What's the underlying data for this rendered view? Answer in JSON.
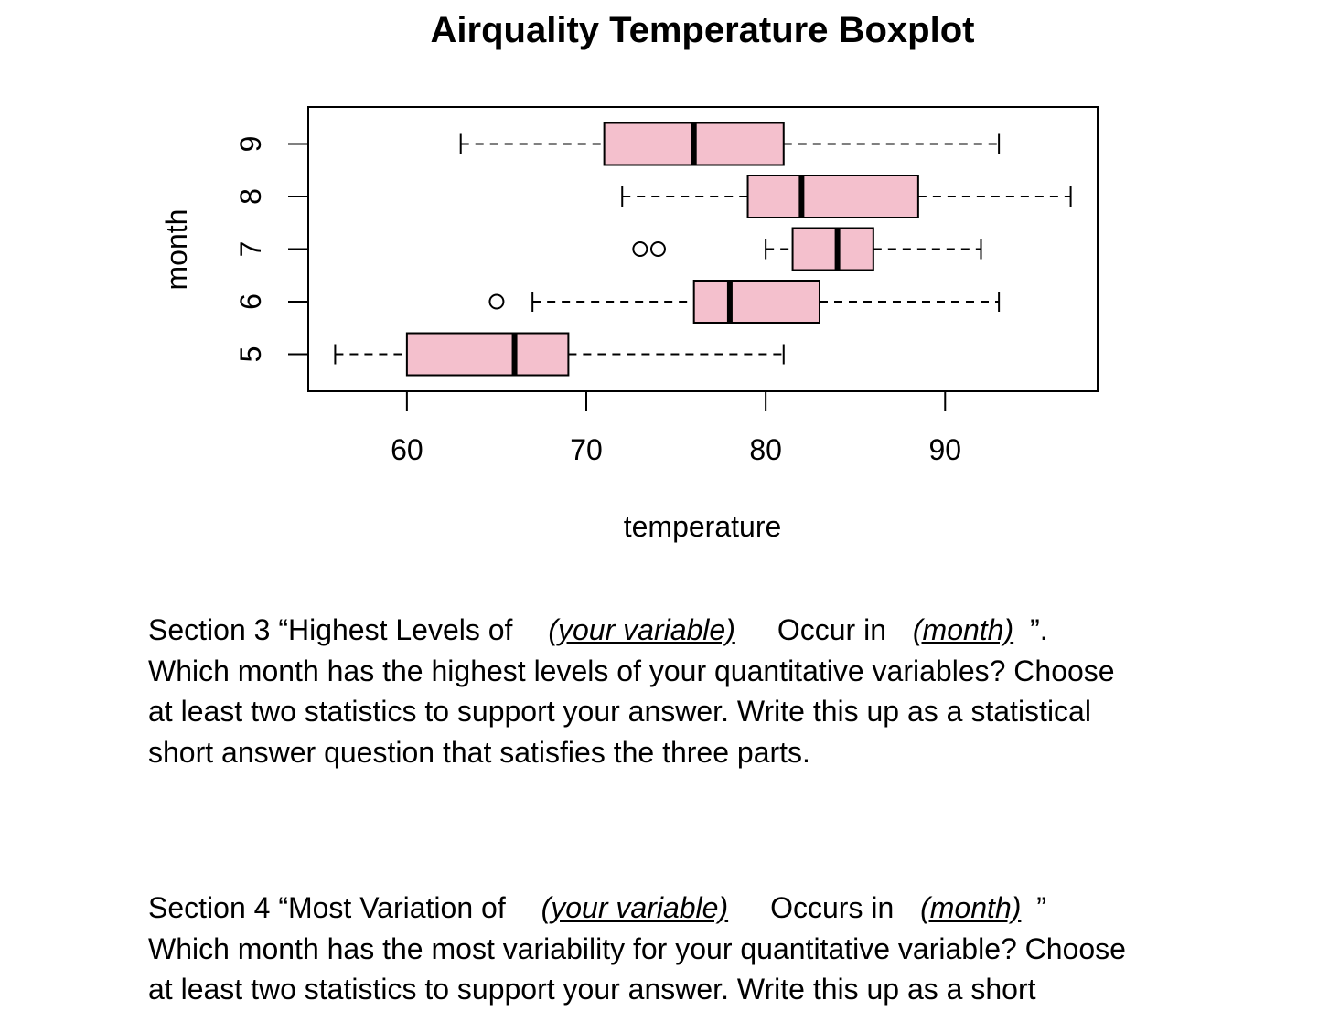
{
  "chart_data": {
    "type": "boxplot",
    "orientation": "horizontal",
    "title": "Airquality Temperature Boxplot",
    "xlabel": "temperature",
    "ylabel": "month",
    "xlim": [
      54.5,
      98.5
    ],
    "x_ticks": [
      60,
      70,
      80,
      90
    ],
    "box_color": "#f4c0cd",
    "categories": [
      "5",
      "6",
      "7",
      "8",
      "9"
    ],
    "boxes": [
      {
        "month": "5",
        "whisker_low": 56,
        "q1": 60,
        "median": 66,
        "q3": 69,
        "whisker_high": 81,
        "outliers": []
      },
      {
        "month": "6",
        "whisker_low": 67,
        "q1": 76,
        "median": 78,
        "q3": 83,
        "whisker_high": 93,
        "outliers": [
          65
        ]
      },
      {
        "month": "7",
        "whisker_low": 80,
        "q1": 81.5,
        "median": 84,
        "q3": 86,
        "whisker_high": 92,
        "outliers": [
          73,
          74
        ]
      },
      {
        "month": "8",
        "whisker_low": 72,
        "q1": 79,
        "median": 82,
        "q3": 88.5,
        "whisker_high": 97,
        "outliers": []
      },
      {
        "month": "9",
        "whisker_low": 63,
        "q1": 71,
        "median": 76,
        "q3": 81,
        "whisker_high": 93,
        "outliers": []
      }
    ]
  },
  "section3": {
    "prefix": "Section 3 “Highest Levels of ",
    "blank_variable": "(your variable)",
    "middle": "Occur in ",
    "blank_month": "(month)",
    "suffix": "”.",
    "line2": "Which month has the highest levels of your quantitative variables? Choose",
    "line3": "at least two statistics to support your answer. Write this up as a statistical",
    "line4": "short answer question that satisfies the three parts."
  },
  "section4": {
    "prefix": "Section 4 “Most Variation of ",
    "blank_variable": "(your variable)",
    "middle": "Occurs in ",
    "blank_month": "(month)",
    "suffix": " ”",
    "line2": "Which month has the most variability for your quantitative variable? Choose",
    "line3": "at least two statistics to support your answer. Write this up as a short"
  }
}
